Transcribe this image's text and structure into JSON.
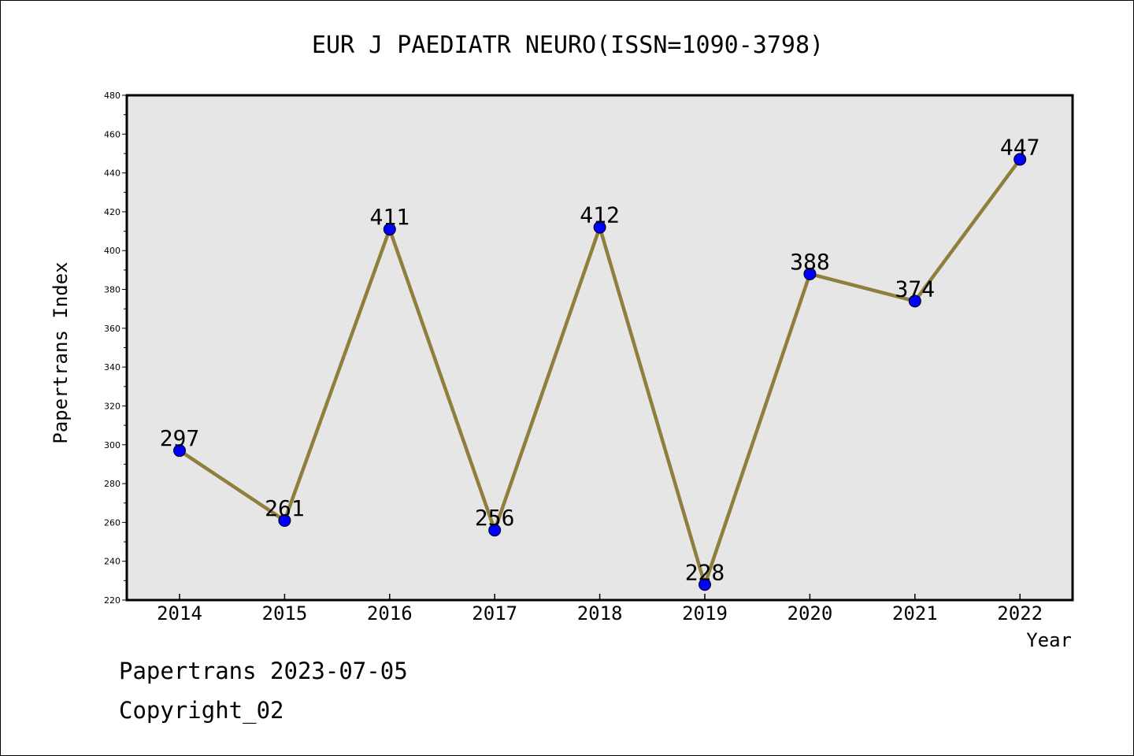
{
  "chart_data": {
    "type": "line",
    "title": "EUR J PAEDIATR NEURO(ISSN=1090-3798)",
    "xlabel": "Year",
    "ylabel": "Papertrans Index",
    "categories": [
      "2014",
      "2015",
      "2016",
      "2017",
      "2018",
      "2019",
      "2020",
      "2021",
      "2022"
    ],
    "values": [
      297,
      261,
      411,
      256,
      412,
      228,
      388,
      374,
      447
    ],
    "ylim": [
      220,
      480
    ],
    "yticks": [
      220,
      240,
      260,
      280,
      300,
      320,
      340,
      360,
      380,
      400,
      420,
      440,
      460,
      480
    ],
    "grid": false,
    "legend": "none",
    "colors": {
      "plot_background": "#e6e6e6",
      "line": "#8f7f3c",
      "marker": "#0000ff"
    }
  },
  "footer": {
    "line1": "Papertrans 2023-07-05",
    "line2": "Copyright_02"
  }
}
